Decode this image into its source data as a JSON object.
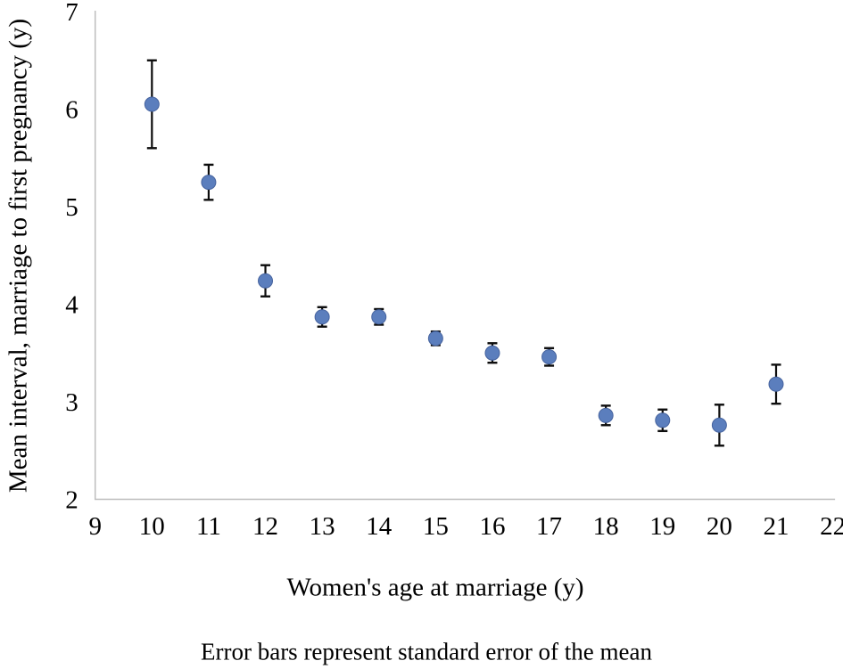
{
  "chart_data": {
    "type": "scatter",
    "title": "",
    "xlabel": "Women's age at marriage (y)",
    "ylabel": "Mean interval, marriage to first pregnancy (y)",
    "caption": "Error bars represent standard error of the mean",
    "x": [
      10,
      11,
      12,
      13,
      14,
      15,
      16,
      17,
      18,
      19,
      20,
      21
    ],
    "y": [
      6.05,
      5.25,
      4.24,
      3.87,
      3.87,
      3.65,
      3.5,
      3.46,
      2.86,
      2.81,
      2.76,
      3.18
    ],
    "se": [
      0.45,
      0.18,
      0.16,
      0.1,
      0.08,
      0.07,
      0.1,
      0.09,
      0.1,
      0.11,
      0.21,
      0.2
    ],
    "error_bar_meaning": "standard error of the mean",
    "axes": {
      "xlim": [
        9,
        22
      ],
      "ylim": [
        2,
        7
      ],
      "x_ticks": [
        9,
        10,
        11,
        12,
        13,
        14,
        15,
        16,
        17,
        18,
        19,
        20,
        21,
        22
      ],
      "y_ticks": [
        2,
        3,
        4,
        5,
        6,
        7
      ],
      "grid": false
    },
    "legend": "none",
    "style": {
      "marker_color": "#5b7ebd",
      "marker_edge_color": "#46639e",
      "error_bar_color": "#0d0d0d",
      "axis_line_color": "#bdbdbd",
      "text_color": "#000000",
      "background": "#ffffff"
    }
  }
}
